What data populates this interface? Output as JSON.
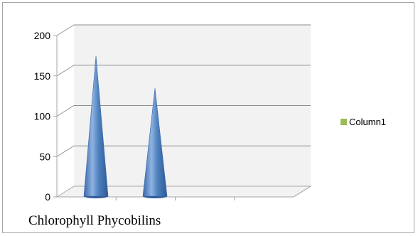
{
  "chart_data": {
    "type": "bar",
    "shape": "cone",
    "categories": [
      "Chlorophyll",
      "Phycobilins"
    ],
    "series": [
      {
        "name": "Column1",
        "values": [
          172,
          132
        ],
        "color": "#4f81bd"
      }
    ],
    "ylim": [
      0,
      200
    ],
    "yticks": [
      0,
      50,
      100,
      150,
      200
    ],
    "grid": true,
    "legend_position": "right",
    "legend_swatch_color": "#9bbb59",
    "category_caption": "Chlorophyll Phycobilins"
  }
}
